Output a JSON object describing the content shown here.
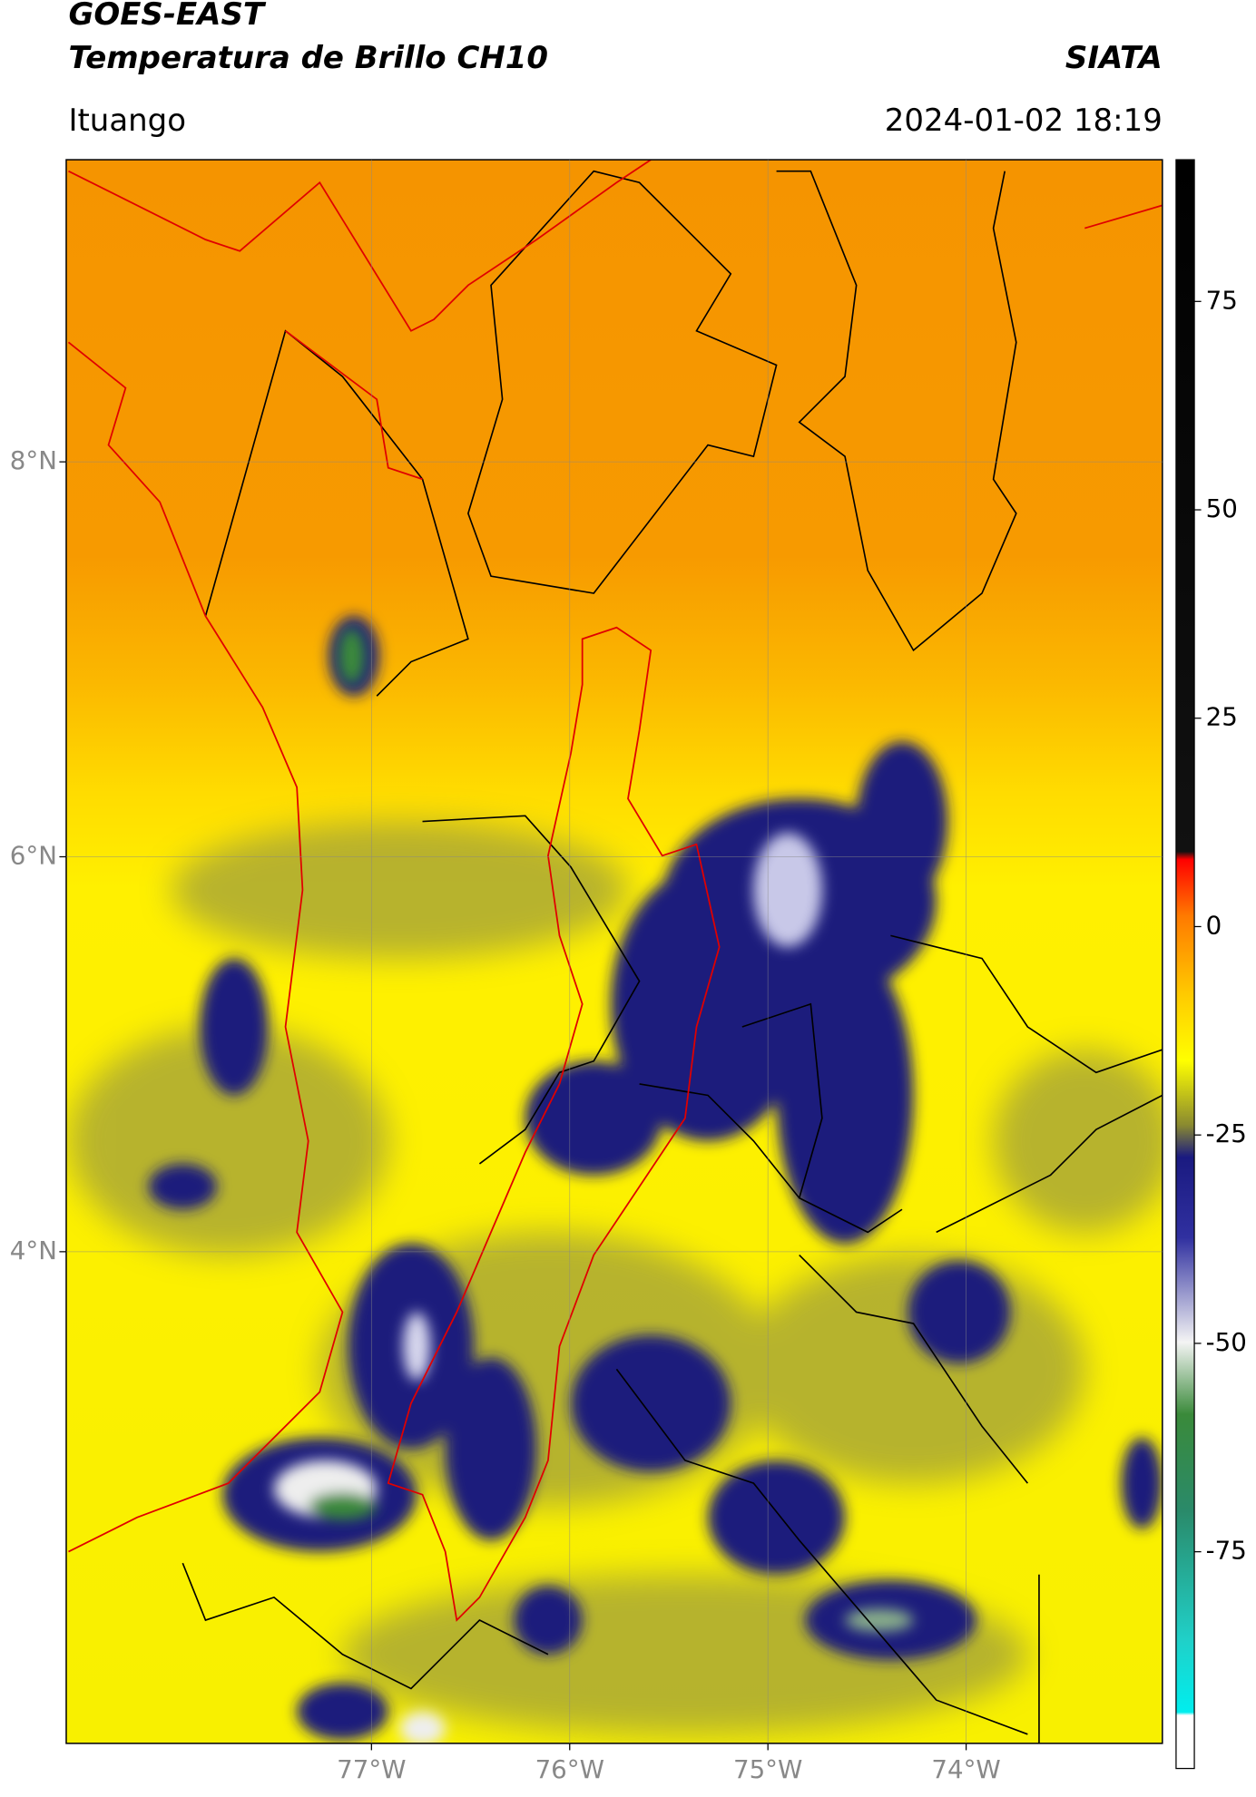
{
  "chart_data": {
    "type": "map",
    "title": "GOES-EAST",
    "subtitle": "Temperatura de Brillo CH10",
    "source": "SIATA",
    "region": "Ituango",
    "datetime": "2024-01-02 18:19",
    "xlim": [
      -78.54,
      -73.01
    ],
    "ylim": [
      1.51,
      9.53
    ],
    "xticks": [
      {
        "value": -77,
        "label": "77°W"
      },
      {
        "value": -76,
        "label": "76°W"
      },
      {
        "value": -75,
        "label": "75°W"
      },
      {
        "value": -74,
        "label": "74°W"
      }
    ],
    "yticks": [
      {
        "value": 8,
        "label": "8°N"
      },
      {
        "value": 6,
        "label": "6°N"
      },
      {
        "value": 4,
        "label": "4°N"
      }
    ],
    "grid": true,
    "colorbar": {
      "lim": [
        -101,
        92
      ],
      "ticks": [
        75,
        50,
        25,
        0,
        -25,
        -50,
        -75
      ]
    }
  }
}
